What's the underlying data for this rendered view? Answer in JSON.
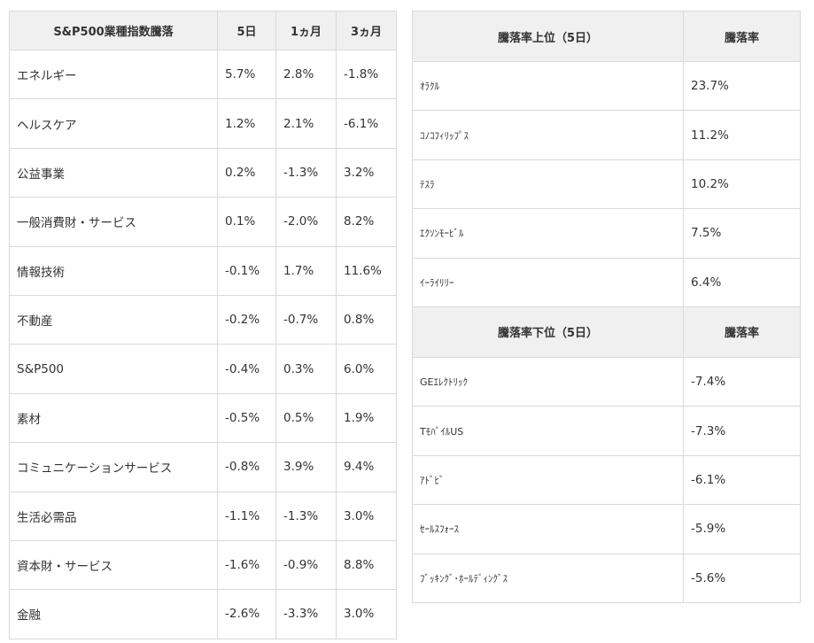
{
  "sector_table": {
    "headers": [
      "S&P500業種指数騰落",
      "5日",
      "1ヵ月",
      "3ヵ月"
    ],
    "rows": [
      [
        "エネルギー",
        "5.7%",
        "2.8%",
        "-1.8%"
      ],
      [
        "ヘルスケア",
        "1.2%",
        "2.1%",
        "-6.1%"
      ],
      [
        "公益事業",
        "0.2%",
        "-1.3%",
        "3.2%"
      ],
      [
        "一般消費財・サービス",
        "0.1%",
        "-2.0%",
        "8.2%"
      ],
      [
        "情報技術",
        "-0.1%",
        "1.7%",
        "11.6%"
      ],
      [
        "不動産",
        "-0.2%",
        "-0.7%",
        "0.8%"
      ],
      [
        "S&P500",
        "-0.4%",
        "0.3%",
        "6.0%"
      ],
      [
        "素材",
        "-0.5%",
        "0.5%",
        "1.9%"
      ],
      [
        "コミュニケーションサービス",
        "-0.8%",
        "3.9%",
        "9.4%"
      ],
      [
        "生活必需品",
        "-1.1%",
        "-1.3%",
        "3.0%"
      ],
      [
        "資本財・サービス",
        "-1.6%",
        "-0.9%",
        "8.8%"
      ],
      [
        "金融",
        "-2.6%",
        "-3.3%",
        "3.0%"
      ]
    ]
  },
  "gainers": {
    "headers": [
      "騰落率上位（5日）",
      "騰落率"
    ],
    "rows": [
      [
        "ｵﾗｸﾙ",
        "23.7%"
      ],
      [
        "ｺﾉｺﾌｨﾘｯﾌﾟｽ",
        "11.2%"
      ],
      [
        "ﾃｽﾗ",
        "10.2%"
      ],
      [
        "ｴｸｿﾝﾓｰﾋﾞﾙ",
        "7.5%"
      ],
      [
        "ｲｰﾗｲﾘﾘｰ",
        "6.4%"
      ]
    ]
  },
  "losers": {
    "headers": [
      "騰落率下位（5日）",
      "騰落率"
    ],
    "rows": [
      [
        "GEｴﾚｸﾄﾘｯｸ",
        "-7.4%"
      ],
      [
        "TﾓﾊﾞｲﾙUS",
        "-7.3%"
      ],
      [
        "ｱﾄﾞﾋﾞ",
        "-6.1%"
      ],
      [
        "ｾｰﾙｽﾌｫｰｽ",
        "-5.9%"
      ],
      [
        "ﾌﾞｯｷﾝｸﾞ･ﾎｰﾙﾃﾞｨﾝｸﾞｽ",
        "-5.6%"
      ]
    ]
  }
}
